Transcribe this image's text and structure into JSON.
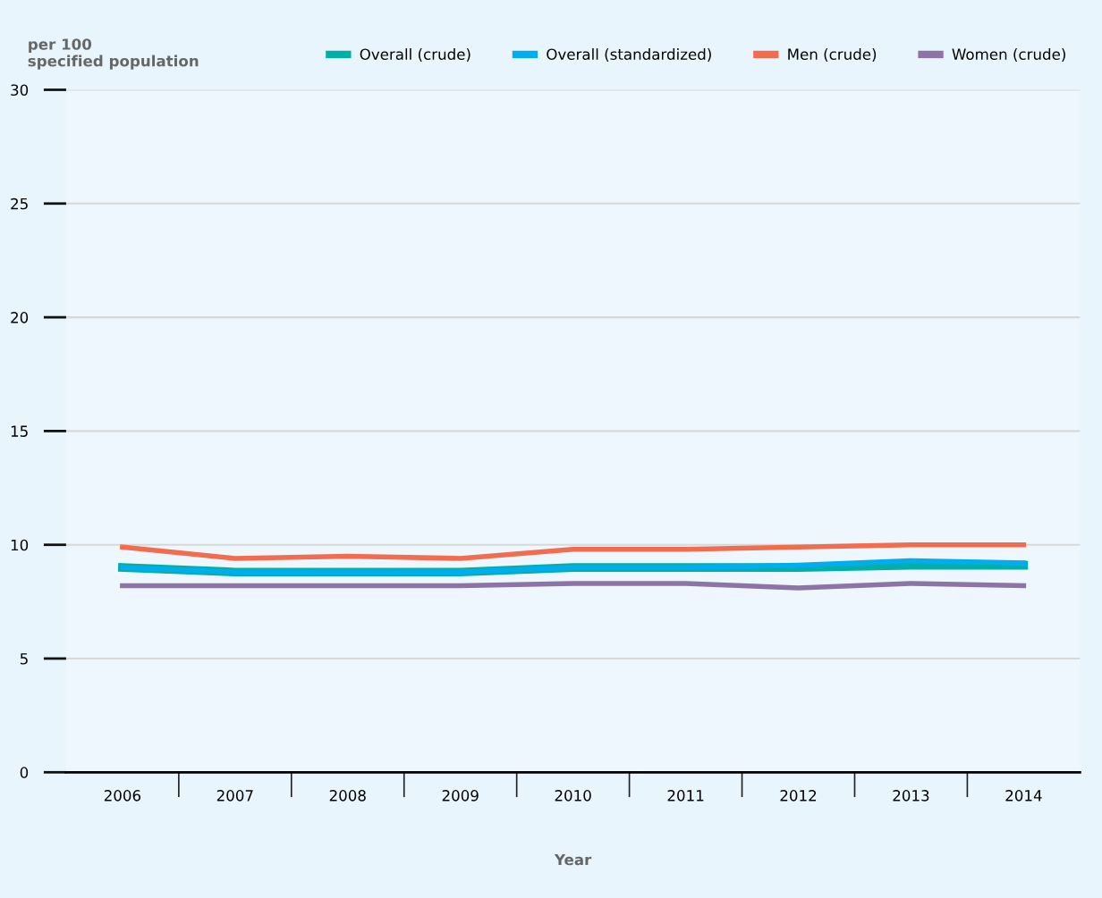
{
  "chart_data": {
    "type": "line",
    "ylabel": "per 100\nspecified population",
    "xlabel": "Year",
    "categories": [
      "2006",
      "2007",
      "2008",
      "2009",
      "2010",
      "2011",
      "2012",
      "2013",
      "2014"
    ],
    "series": [
      {
        "name": "Overall (crude)",
        "color": "#00b0a8",
        "values": [
          9.0,
          8.8,
          8.8,
          8.8,
          9.0,
          9.0,
          9.0,
          9.1,
          9.1
        ]
      },
      {
        "name": "Overall (standardized)",
        "color": "#00aeef",
        "values": [
          9.0,
          8.8,
          8.8,
          8.8,
          9.0,
          9.0,
          9.1,
          9.3,
          9.2
        ]
      },
      {
        "name": "Men (crude)",
        "color": "#f26c50",
        "values": [
          9.9,
          9.4,
          9.5,
          9.4,
          9.8,
          9.8,
          9.9,
          10.0,
          10.0
        ]
      },
      {
        "name": "Women (crude)",
        "color": "#8e73a8",
        "values": [
          8.2,
          8.2,
          8.2,
          8.2,
          8.3,
          8.3,
          8.1,
          8.3,
          8.2
        ]
      }
    ],
    "ylim": [
      0,
      30
    ],
    "yticks": [
      0,
      5,
      10,
      15,
      20,
      25,
      30
    ],
    "grid": "y",
    "legend": "top",
    "marker": "none",
    "line_style": "solid"
  }
}
